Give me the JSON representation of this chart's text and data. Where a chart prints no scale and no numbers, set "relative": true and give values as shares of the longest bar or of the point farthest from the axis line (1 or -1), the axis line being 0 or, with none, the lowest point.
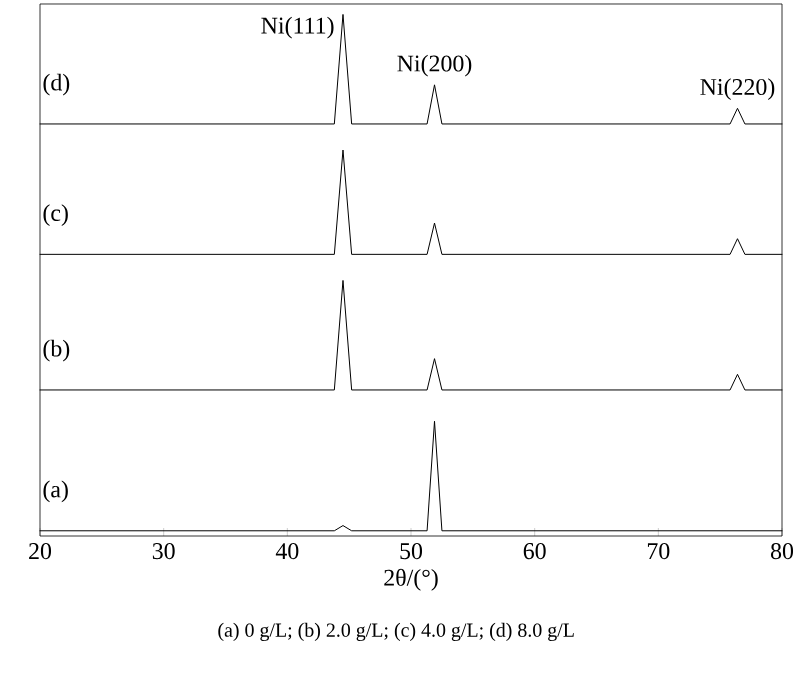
{
  "chart_data": {
    "type": "line",
    "relative": true,
    "xlabel": "2θ/(°)",
    "xlim": [
      20,
      80
    ],
    "xticks": [
      20,
      30,
      40,
      50,
      60,
      70,
      80
    ],
    "tick_labels": "x",
    "x": [
      20,
      30,
      40,
      43.8,
      44.5,
      45.2,
      50,
      51.3,
      51.9,
      52.5,
      60,
      70,
      75.8,
      76.4,
      77,
      80
    ],
    "series": [
      {
        "name": "(a)",
        "color": "#000000",
        "values": [
          0.01,
          0.01,
          0.01,
          0.01,
          0.02,
          0.01,
          0.01,
          0.01,
          0.22,
          0.01,
          0.01,
          0.01,
          0.01,
          0.01,
          0.01,
          0.01
        ]
      },
      {
        "name": "(b)",
        "color": "#000000",
        "values": [
          0.28,
          0.28,
          0.28,
          0.28,
          0.49,
          0.28,
          0.28,
          0.28,
          0.34,
          0.28,
          0.28,
          0.28,
          0.28,
          0.31,
          0.28,
          0.28
        ]
      },
      {
        "name": "(c)",
        "color": "#000000",
        "values": [
          0.54,
          0.54,
          0.54,
          0.54,
          0.74,
          0.54,
          0.54,
          0.54,
          0.6,
          0.54,
          0.54,
          0.54,
          0.54,
          0.57,
          0.54,
          0.54
        ]
      },
      {
        "name": "(d)",
        "color": "#000000",
        "values": [
          0.79,
          0.79,
          0.79,
          0.79,
          1.0,
          0.79,
          0.79,
          0.79,
          0.865,
          0.79,
          0.79,
          0.79,
          0.79,
          0.82,
          0.79,
          0.79
        ]
      }
    ],
    "annotations": [
      {
        "text": "Ni(111)",
        "x": 44.5,
        "y": 1.0
      },
      {
        "text": "Ni(200)",
        "x": 51.9,
        "y": 0.865
      },
      {
        "text": "Ni(220)",
        "x": 76.4,
        "y": 0.82
      },
      "(a) 0 g/L; (b) 2.0 g/L; (c) 4.0 g/L; (d) 8.0  g/L"
    ]
  }
}
